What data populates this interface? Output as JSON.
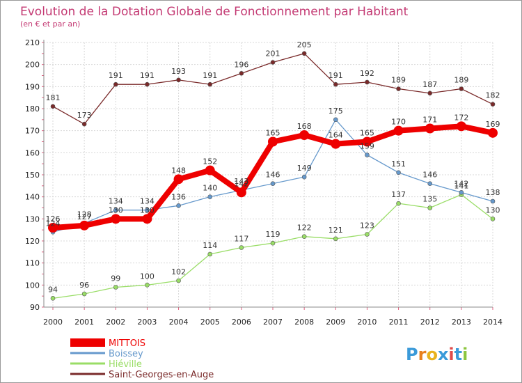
{
  "chart_data": {
    "type": "line",
    "title": "Evolution de la Dotation Globale de Fonctionnement par Habitant",
    "subtitle": "(en € et par an)",
    "x": [
      "2000",
      "2001",
      "2002",
      "2003",
      "2004",
      "2005",
      "2006",
      "2007",
      "2008",
      "2009",
      "2010",
      "2011",
      "2012",
      "2013",
      "2014"
    ],
    "yticks": [
      "90",
      "100",
      "110",
      "120",
      "130",
      "140",
      "150",
      "160",
      "170",
      "180",
      "190",
      "200",
      "210"
    ],
    "ylim": [
      90,
      210
    ],
    "series": [
      {
        "name": "MITTOIS",
        "color": "#ee0000",
        "values": [
          126,
          127,
          130,
          130,
          148,
          152,
          142,
          165,
          168,
          164,
          165,
          170,
          171,
          172,
          169
        ],
        "labels": [
          "126",
          "127",
          "130",
          "130",
          "148",
          "152",
          "142",
          "165",
          "168",
          "164",
          "165",
          "170",
          "171",
          "172",
          "169"
        ]
      },
      {
        "name": "Boissey",
        "color": "#6699cc",
        "values": [
          124,
          128,
          134,
          134,
          136,
          140,
          143,
          146,
          149,
          175,
          159,
          151,
          146,
          142,
          138
        ],
        "labels": [
          "124",
          "128",
          "134",
          "134",
          "136",
          "140",
          "143",
          "146",
          "149",
          "175",
          "159",
          "151",
          "146",
          "142",
          "138"
        ]
      },
      {
        "name": "Hiéville",
        "color": "#99dd66",
        "values": [
          94,
          96,
          99,
          100,
          102,
          114,
          117,
          119,
          122,
          121,
          123,
          137,
          135,
          141,
          130
        ],
        "labels": [
          "94",
          "96",
          "99",
          "100",
          "102",
          "114",
          "117",
          "119",
          "122",
          "121",
          "123",
          "137",
          "135",
          "141",
          "130"
        ]
      },
      {
        "name": "Saint-Georges-en-Auge",
        "color": "#7a2a2a",
        "values": [
          181,
          173,
          191,
          191,
          193,
          191,
          196,
          201,
          205,
          191,
          192,
          189,
          187,
          189,
          182
        ],
        "labels": [
          "181",
          "173",
          "191",
          "191",
          "193",
          "191",
          "196",
          "201",
          "205",
          "191",
          "192",
          "189",
          "187",
          "189",
          "182"
        ]
      }
    ]
  },
  "logo": {
    "text": "Proxiti",
    "letters": [
      {
        "ch": "P",
        "color": "#3a9ad9"
      },
      {
        "ch": "r",
        "color": "#e8801e"
      },
      {
        "ch": "o",
        "color": "#e8b21e"
      },
      {
        "ch": "x",
        "color": "#3a9ad9"
      },
      {
        "ch": "i",
        "color": "#e04a4a"
      },
      {
        "ch": "t",
        "color": "#3a9ad9"
      },
      {
        "ch": "i",
        "color": "#8cc63f"
      }
    ]
  }
}
